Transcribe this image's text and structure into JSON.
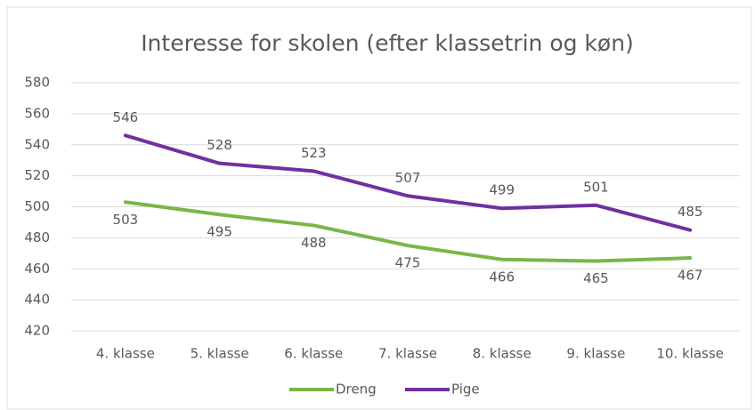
{
  "chart_data": {
    "type": "line",
    "title": "Interesse for skolen (efter klassetrin og køn)",
    "categories": [
      "4. klasse",
      "5. klasse",
      "6. klasse",
      "7. klasse",
      "8. klasse",
      "9. klasse",
      "10. klasse"
    ],
    "series": [
      {
        "name": "Dreng",
        "color": "#7ab648",
        "values": [
          503,
          495,
          488,
          475,
          466,
          465,
          467
        ]
      },
      {
        "name": "Pige",
        "color": "#7030a0",
        "values": [
          546,
          528,
          523,
          507,
          499,
          501,
          485
        ]
      }
    ],
    "ylim": [
      420,
      580
    ],
    "yticks": [
      420,
      440,
      460,
      480,
      500,
      520,
      540,
      560,
      580
    ],
    "grid": true,
    "legend": "bottom"
  }
}
